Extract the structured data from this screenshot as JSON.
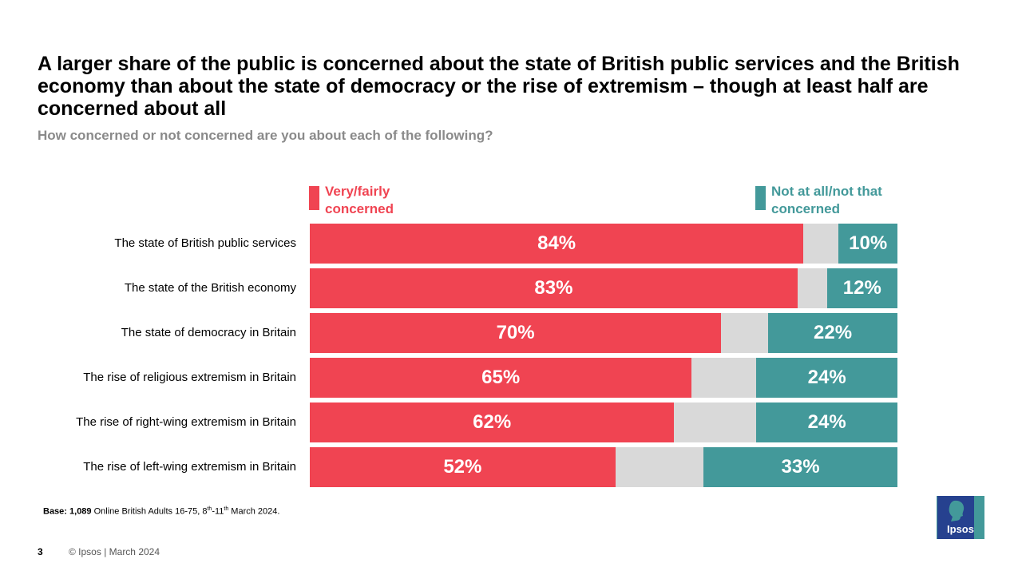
{
  "title": "A larger share of the public is concerned about the state of British public services and the British economy than about the state of democracy or the rise of extremism – though at least half are concerned about all",
  "subtitle": "How concerned or not concerned are you about each of the following?",
  "legend": {
    "concerned": "Very/fairly concerned",
    "not_concerned": "Not at all/not that concerned"
  },
  "colors": {
    "concerned": "#f04452",
    "neutral": "#d9d9d9",
    "not_concerned": "#43999a",
    "logo_blue": "#26418f"
  },
  "chart_data": {
    "type": "bar",
    "orientation": "horizontal-stacked",
    "categories": [
      "The state of British public services",
      "The state of the British economy",
      "The state of democracy in Britain",
      "The rise of religious extremism in Britain",
      "The rise of right-wing extremism in Britain",
      "The rise of left-wing extremism in Britain"
    ],
    "series": [
      {
        "name": "Very/fairly concerned",
        "values": [
          84,
          83,
          70,
          65,
          62,
          52
        ],
        "labels": [
          "84%",
          "83%",
          "70%",
          "65%",
          "62%",
          "52%"
        ]
      },
      {
        "name": "Other",
        "values": [
          6,
          5,
          8,
          11,
          14,
          15
        ]
      },
      {
        "name": "Not at all/not that concerned",
        "values": [
          10,
          12,
          22,
          24,
          24,
          33
        ],
        "labels": [
          "10%",
          "12%",
          "22%",
          "24%",
          "24%",
          "33%"
        ]
      }
    ],
    "xlim": [
      0,
      100
    ],
    "unit": "%"
  },
  "base_note": {
    "prefix": "Base: 1,089",
    "text1": " Online British Adults 16-75, 8",
    "sup1": "th",
    "text2": "-11",
    "sup2": "th",
    "text3": " March 2024."
  },
  "footer": {
    "page_number": "3",
    "copyright": "© Ipsos | March 2024"
  },
  "logo_text": "Ipsos"
}
